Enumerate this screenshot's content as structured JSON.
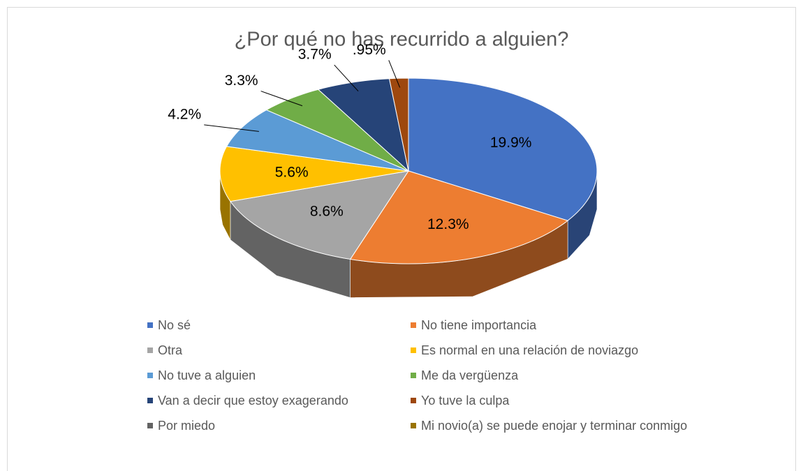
{
  "chart_data": {
    "type": "pie3d",
    "title": "¿Por qué no has recurrido a alguien?",
    "categories": [
      "No sé",
      "No tiene importancia",
      "Otra",
      "Es normal en una relación de noviazgo",
      "No tuve a alguien",
      "Me da vergüenza",
      "Van a decir que estoy exagerando",
      "Yo tuve la culpa",
      "Por miedo",
      "Mi novio(a) se puede enojar y terminar conmigo"
    ],
    "values": [
      19.9,
      12.3,
      8.6,
      5.6,
      4.2,
      3.3,
      3.7,
      0.95,
      0,
      0
    ],
    "value_labels": [
      "19.9%",
      "12.3%",
      "8.6%",
      "5.6%",
      "4.2%",
      "3.3%",
      "3.7%",
      ".95%",
      null,
      null
    ],
    "colors": [
      "#4472c4",
      "#ed7d31",
      "#a5a5a5",
      "#ffc000",
      "#5b9bd5",
      "#70ad47",
      "#264478",
      "#9e480e",
      "#636363",
      "#997300"
    ],
    "legend": "bottom"
  }
}
